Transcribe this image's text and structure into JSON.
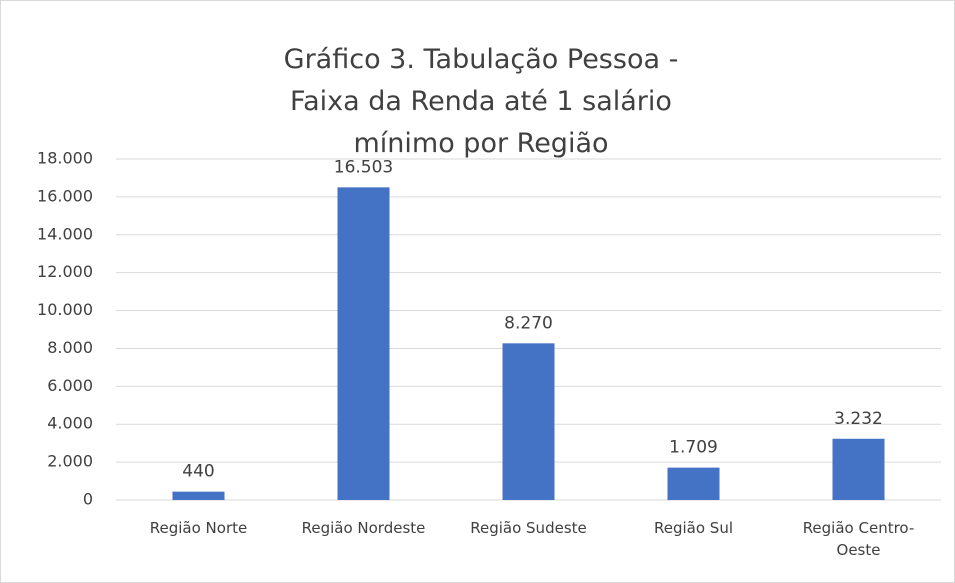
{
  "chart_data": {
    "type": "bar",
    "title": "Gráfico 3. Tabulação Pessoa - Faixa da Renda até 1 salário mínimo por Região",
    "categories": [
      "Região Norte",
      "Região Nordeste",
      "Região Sudeste",
      "Região Sul",
      "Região Centro-Oeste"
    ],
    "values": [
      440,
      16503,
      8270,
      1709,
      3232
    ],
    "value_labels": [
      "440",
      "16.503",
      "8.270",
      "1.709",
      "3.232"
    ],
    "color": "#4472c4",
    "ylim": [
      0,
      18000
    ],
    "yticks": [
      0,
      {
        "value": 2000,
        "label": "2.000"
      },
      {
        "value": 4000,
        "label": "4.000"
      },
      {
        "value": 6000,
        "label": "6.000"
      },
      {
        "value": 8000,
        "label": "8.000"
      },
      {
        "value": 10000,
        "label": "10.000"
      },
      {
        "value": 12000,
        "label": "12.000"
      },
      {
        "value": 14000,
        "label": "14.000"
      },
      {
        "value": 16000,
        "label": "16.000"
      },
      {
        "value": 18000,
        "label": "18.000"
      }
    ],
    "grid": true
  }
}
